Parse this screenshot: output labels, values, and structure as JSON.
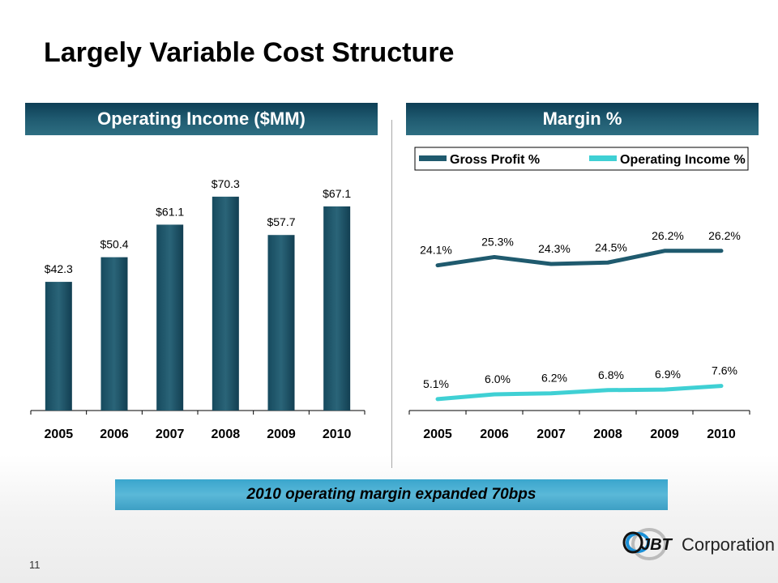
{
  "slide": {
    "title": "Largely Variable Cost Structure",
    "page_number": "11",
    "callout": "2010 operating margin expanded 70bps",
    "logo": {
      "mark": "JBT",
      "text": "Corporation"
    }
  },
  "colors": {
    "bar": "#1c5468",
    "gross_profit_line": "#1f5a6e",
    "operating_income_line": "#3fd0d4",
    "header": "#1f5a70",
    "callout": "#4ab0d4"
  },
  "chart_data": [
    {
      "type": "bar",
      "title": "Operating Income ($MM)",
      "categories": [
        "2005",
        "2006",
        "2007",
        "2008",
        "2009",
        "2010"
      ],
      "values": [
        42.3,
        50.4,
        61.1,
        70.3,
        57.7,
        67.1
      ],
      "data_labels": [
        "$42.3",
        "$50.4",
        "$61.1",
        "$70.3",
        "$57.7",
        "$67.1"
      ],
      "xlabel": "",
      "ylabel": "",
      "ylim": [
        0,
        75
      ],
      "grid": false,
      "legend": "none"
    },
    {
      "type": "line",
      "title": "Margin %",
      "categories": [
        "2005",
        "2006",
        "2007",
        "2008",
        "2009",
        "2010"
      ],
      "series": [
        {
          "name": "Gross Profit %",
          "values": [
            24.1,
            25.3,
            24.3,
            24.5,
            26.2,
            26.2
          ],
          "labels": [
            "24.1%",
            "25.3%",
            "24.3%",
            "24.5%",
            "26.2%",
            "26.2%"
          ]
        },
        {
          "name": "Operating Income %",
          "values": [
            5.1,
            6.0,
            6.2,
            6.8,
            6.9,
            7.6
          ],
          "labels": [
            "5.1%",
            "6.0%",
            "6.2%",
            "6.8%",
            "6.9%",
            "7.6%"
          ]
        }
      ],
      "xlabel": "",
      "ylabel": "",
      "ylim": [
        0,
        30
      ],
      "grid": false,
      "legend": "top"
    }
  ]
}
